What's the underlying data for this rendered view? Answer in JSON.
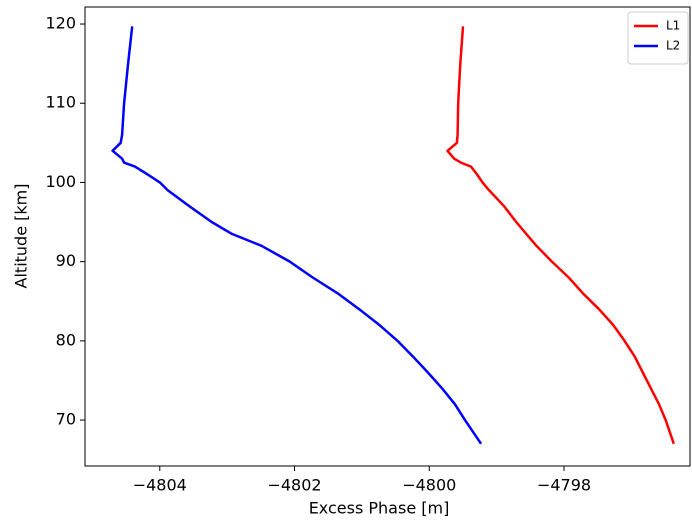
{
  "chart_data": {
    "type": "line",
    "xlabel": "Excess Phase [m]",
    "ylabel": "Altitude [km]",
    "series": [
      {
        "name": "L1",
        "color": "#ff0000",
        "x": [
          -4799.5,
          -4799.54,
          -4799.57,
          -4799.58,
          -4799.59,
          -4799.73,
          -4799.63,
          -4799.53,
          -4799.38,
          -4799.29,
          -4799.21,
          -4799.11,
          -4798.89,
          -4798.71,
          -4798.56,
          -4798.41,
          -4798.18,
          -4797.93,
          -4797.72,
          -4797.48,
          -4797.27,
          -4797.1,
          -4796.95,
          -4796.83,
          -4796.71,
          -4796.59,
          -4796.49,
          -4796.37
        ],
        "values": [
          119.7,
          115,
          110,
          106,
          105,
          104,
          103,
          102.5,
          102,
          101,
          100,
          99,
          97,
          95,
          93.5,
          92,
          90,
          88,
          86,
          84,
          82,
          80,
          78,
          76,
          74,
          72,
          70,
          67
        ]
      },
      {
        "name": "L2",
        "color": "#0000ff",
        "x": [
          -4804.41,
          -4804.47,
          -4804.53,
          -4804.56,
          -4804.58,
          -4804.7,
          -4804.56,
          -4804.53,
          -4804.37,
          -4804.18,
          -4804.0,
          -4803.88,
          -4803.56,
          -4803.23,
          -4802.93,
          -4802.49,
          -4802.07,
          -4801.73,
          -4801.36,
          -4801.04,
          -4800.74,
          -4800.47,
          -4800.24,
          -4800.02,
          -4799.81,
          -4799.62,
          -4799.47,
          -4799.23
        ],
        "values": [
          119.7,
          115,
          110,
          106,
          105,
          104,
          103,
          102.5,
          102,
          101,
          100,
          99,
          97,
          95,
          93.5,
          92,
          90,
          88,
          86,
          84,
          82,
          80,
          78,
          76,
          74,
          72,
          70,
          67
        ]
      }
    ],
    "xlim": [
      -4805.11,
      -4796.13
    ],
    "ylim": [
      64.2,
      122.15
    ],
    "xticks": [
      {
        "value": -4804,
        "label": "−4804"
      },
      {
        "value": -4802,
        "label": "−4802"
      },
      {
        "value": -4800,
        "label": "−4800"
      },
      {
        "value": -4798,
        "label": "−4798"
      }
    ],
    "yticks": [
      70,
      80,
      90,
      100,
      110,
      120
    ],
    "legend": "upper right"
  }
}
